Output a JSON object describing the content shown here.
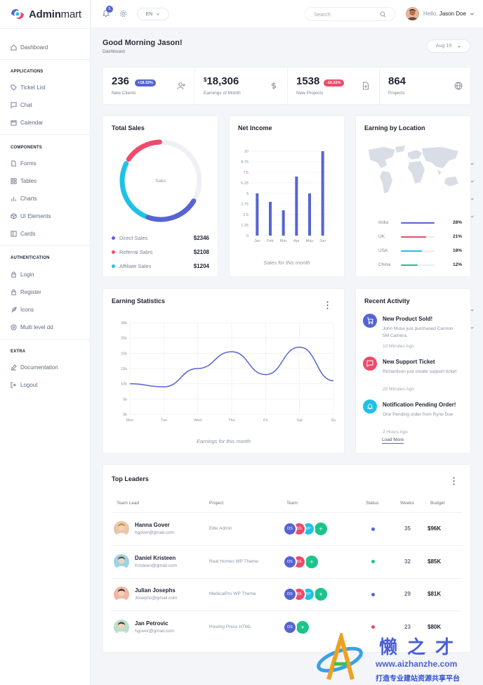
{
  "app": {
    "brand_bold": "Admin",
    "brand_light": "mart"
  },
  "topbar": {
    "notification_count": "5",
    "language": "EN",
    "search_placeholder": "Search",
    "hello_label": "Hello,",
    "user_name": "Jason Doe"
  },
  "sidebar": {
    "dashboard": "Dashboard",
    "applications_heading": "APPLICATIONS",
    "ticket_list": "Ticket List",
    "chat": "Chat",
    "calendar": "Calendar",
    "components_heading": "COMPONENTS",
    "forms": "Forms",
    "tables": "Tables",
    "charts": "Charts",
    "ui_elements": "UI Elements",
    "cards": "Cards",
    "authentication_heading": "AUTHENTICATION",
    "login": "Login",
    "register": "Register",
    "icons": "Icons",
    "multi_level": "Multi level dd",
    "extra_heading": "EXTRA",
    "documentation": "Documentation",
    "logout": "Logout"
  },
  "page": {
    "greeting": "Good Morning Jason!",
    "breadcrumb": "Dashboard",
    "date_filter": "Aug 19"
  },
  "stats": [
    {
      "value": "236",
      "label": "New Clients",
      "badge": "+18.33%",
      "badge_color": "#5664d2"
    },
    {
      "currency": "$",
      "value": "18,306",
      "label": "Earnings of Month"
    },
    {
      "value": "1538",
      "label": "New Projects",
      "badge": "-18.33%",
      "badge_color": "#ee4a6b"
    },
    {
      "value": "864",
      "label": "Projects"
    }
  ],
  "total_sales": {
    "title": "Total Sales",
    "center_label": "Sales",
    "items": [
      {
        "label": "Direct Sales",
        "value": "$2346",
        "color": "#5664d2"
      },
      {
        "label": "Referral Sales",
        "value": "$2108",
        "color": "#ee4a6b"
      },
      {
        "label": "Affiliate Sales",
        "value": "$1204",
        "color": "#1ec2e6"
      }
    ]
  },
  "net_income": {
    "title": "Net Income",
    "caption": "Sales for this month"
  },
  "location": {
    "title": "Earning by Location",
    "rows": [
      {
        "name": "India",
        "pct": "28%",
        "fill": 1.0,
        "color": "#5664d2"
      },
      {
        "name": "UK",
        "pct": "21%",
        "fill": 0.75,
        "color": "#ee4a6b"
      },
      {
        "name": "USA",
        "pct": "18%",
        "fill": 0.62,
        "color": "#1ec2e6"
      },
      {
        "name": "China",
        "pct": "12%",
        "fill": 0.5,
        "color": "#1dc48a"
      }
    ]
  },
  "earning_stats": {
    "title": "Earning Statistics",
    "caption": "Earnings for this month"
  },
  "activity": {
    "title": "Recent Activity",
    "items": [
      {
        "title": "New Product Sold!",
        "desc": "John Musa just purchased Cannon 5M Camera.",
        "time": "10 Minutes Ago",
        "color": "#5664d2",
        "icon": "cart-icon"
      },
      {
        "title": "New Support Ticket",
        "desc": "Richardson just create support ticket",
        "time": "25 Minutes Ago",
        "color": "#ee4a6b",
        "icon": "message-icon"
      },
      {
        "title": "Notification Pending Order!",
        "desc": "One Pending order from Ryne Doe",
        "time": "2 Hours Ago",
        "color": "#1ec2e6",
        "icon": "bell-icon"
      }
    ],
    "load_more": "Load More"
  },
  "leaders": {
    "title": "Top Leaders",
    "columns": [
      "Team Lead",
      "Project",
      "Team",
      "Status",
      "Weeks",
      "Budget"
    ],
    "rows": [
      {
        "name": "Hanna Gover",
        "email": "hgover@gmail.com",
        "project": "Elite Admin",
        "team": [
          "DS",
          "SS",
          "RP",
          "+"
        ],
        "status_color": "#5664d2",
        "weeks": "35",
        "budget": "$96K"
      },
      {
        "name": "Daniel Kristeen",
        "email": "Kristeen@gmail.com",
        "project": "Real Homes WP Theme",
        "team": [
          "DS",
          "SS",
          "+"
        ],
        "status_color": "#1dc48a",
        "weeks": "32",
        "budget": "$85K"
      },
      {
        "name": "Julian Josephs",
        "email": "Josephs@gmail.com",
        "project": "MedicalPro WP Theme",
        "team": [
          "DS",
          "SS",
          "RP",
          "+"
        ],
        "status_color": "#5664d2",
        "weeks": "29",
        "budget": "$81K"
      },
      {
        "name": "Jan Petrovic",
        "email": "hgover@gmail.com",
        "project": "Hosting Press HTML",
        "team": [
          "DS",
          "+"
        ],
        "status_color": "#ee4a6b",
        "weeks": "23",
        "budget": "$80K"
      }
    ]
  },
  "watermark": {
    "title": "懒之才",
    "url": "www.aizhanzhe.com",
    "subtitle": "打造专业建站资源共享平台"
  },
  "chart_data": [
    {
      "type": "pie",
      "title": "Total Sales",
      "categories": [
        "Direct Sales",
        "Referral Sales",
        "Affiliate Sales"
      ],
      "values": [
        2346,
        2108,
        1204
      ]
    },
    {
      "type": "bar",
      "title": "Net Income",
      "categories": [
        "Jan",
        "Feb",
        "Mar",
        "Apr",
        "May",
        "Jun"
      ],
      "values": [
        5,
        4,
        3,
        7,
        5,
        10
      ],
      "yticks": [
        "0",
        "1.25",
        "2.5",
        "3.75",
        "5",
        "6.25",
        "7.5",
        "8.75",
        "10"
      ],
      "ylim": [
        0,
        10
      ],
      "color": "#5664d2"
    },
    {
      "type": "line",
      "title": "Earning Statistics",
      "x": [
        "Mon",
        "Tue",
        "Wed",
        "Thu",
        "Fri",
        "Sat",
        "Su"
      ],
      "values": [
        10000,
        9000,
        15000,
        20500,
        13000,
        22000,
        11000
      ],
      "yticks": [
        "0k",
        "5k",
        "10k",
        "15k",
        "20k",
        "25k",
        "30k"
      ],
      "ylim": [
        0,
        30000
      ],
      "color": "#5664d2"
    }
  ]
}
